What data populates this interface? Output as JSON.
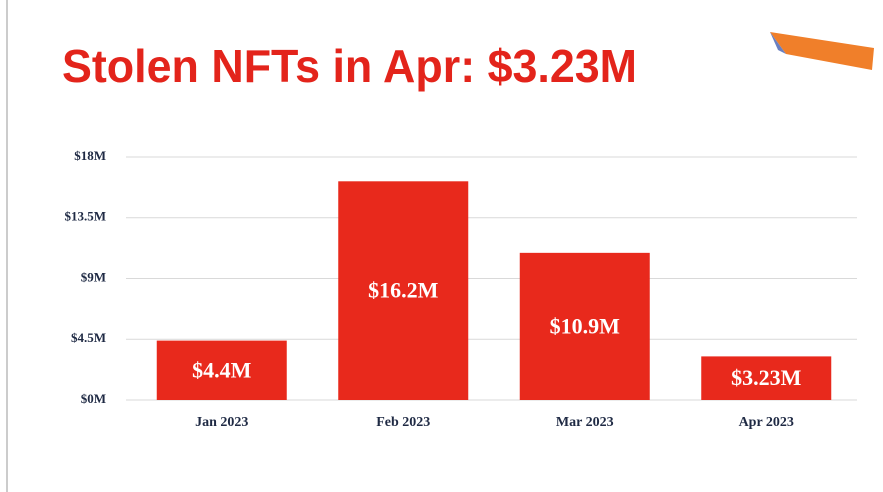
{
  "chart_data": {
    "type": "bar",
    "title": "Stolen NFTs in Apr: $3.23M",
    "categories": [
      "Jan 2023",
      "Feb 2023",
      "Mar 2023",
      "Apr 2023"
    ],
    "values": [
      4400000,
      16200000,
      10900000,
      3230000
    ],
    "value_labels": [
      "$4.4M",
      "$16.2M",
      "$10.9M",
      "$3.23M"
    ],
    "color": "#e8291c",
    "ylim": [
      0,
      18000000
    ],
    "yticks": [
      {
        "value": 0,
        "label": "$0M"
      },
      {
        "value": 4500000,
        "label": "$4.5M"
      },
      {
        "value": 9000000,
        "label": "$9M"
      },
      {
        "value": 13500000,
        "label": "$13.5M"
      },
      {
        "value": 18000000,
        "label": "$18M"
      }
    ],
    "grid": true
  }
}
